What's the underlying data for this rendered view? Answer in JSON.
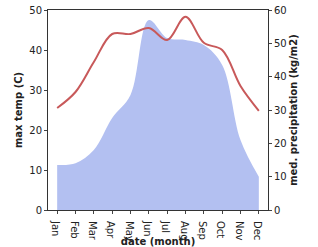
{
  "chart_data": {
    "type": "line",
    "x_label": "date (month)",
    "y_label": "max temp (C)",
    "y2_label": "med. precipitation (kg/m2)",
    "categories": [
      "Jan",
      "Feb",
      "Mar",
      "Apr",
      "May",
      "Jun",
      "Jul",
      "Aug",
      "Sep",
      "Oct",
      "Nov",
      "Dec"
    ],
    "series": [
      {
        "name": "med. precipitation (kg/m2)",
        "type": "area",
        "axis": "y2",
        "color": "#b3c0f1",
        "values": [
          13.5,
          14,
          18,
          27.6,
          34.5,
          57,
          51.6,
          51,
          49.5,
          43.5,
          21,
          10
        ]
      },
      {
        "name": "max temp (C)",
        "type": "line",
        "color": "#c8595a",
        "values": [
          25.5,
          29.5,
          37,
          44,
          44,
          45.5,
          42.5,
          48.3,
          41.8,
          40,
          31,
          24.8
        ]
      }
    ],
    "ylim": [
      0,
      50
    ],
    "yticks": [
      0,
      10,
      20,
      30,
      40,
      50
    ],
    "y2lim": [
      0,
      60
    ],
    "y2ticks": [
      0,
      10,
      20,
      30,
      40,
      50,
      60
    ],
    "grid": false
  }
}
